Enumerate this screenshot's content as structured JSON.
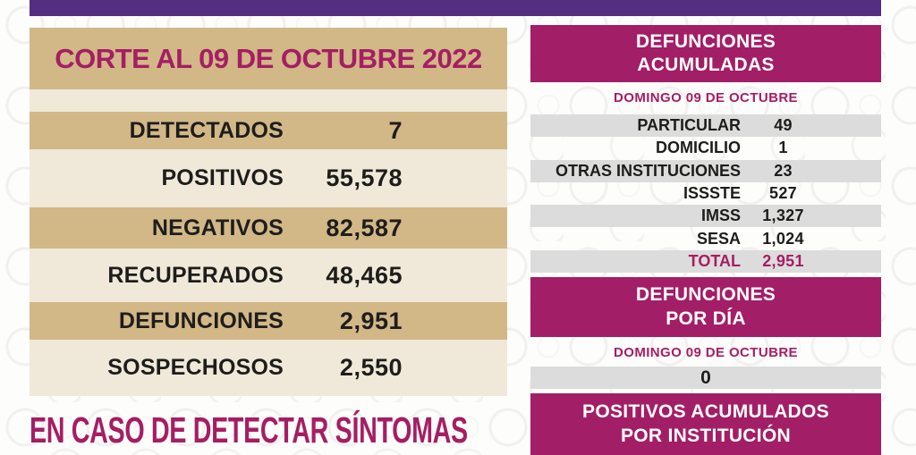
{
  "colors": {
    "purple_bar": "#542e80",
    "magenta": "#a21e66",
    "magenta_text": "#a51e63",
    "tan_band": "#d2b787",
    "cream_bg": "#f0e9d9",
    "gray_row": "#dcdcdc",
    "dark_text": "#1d1d1b"
  },
  "left_panel": {
    "title": "CORTE AL 09 DE OCTUBRE 2022",
    "rows": [
      {
        "label": "DETECTADOS",
        "value": "7"
      },
      {
        "label": "POSITIVOS",
        "value": "55,578"
      },
      {
        "label": "NEGATIVOS",
        "value": "82,587"
      },
      {
        "label": "RECUPERADOS",
        "value": "48,465"
      },
      {
        "label": "DEFUNCIONES",
        "value": "2,951"
      },
      {
        "label": "SOSPECHOSOS",
        "value": "2,550"
      }
    ],
    "footer_note": "EN CASO DE DETECTAR SÍNTOMAS"
  },
  "deaths_accumulated": {
    "title_line1": "DEFUNCIONES",
    "title_line2": "ACUMULADAS",
    "subtitle": "DOMINGO 09 DE OCTUBRE",
    "rows": [
      {
        "label": "PARTICULAR",
        "value": "49"
      },
      {
        "label": "DOMICILIO",
        "value": "1"
      },
      {
        "label": "OTRAS INSTITUCIONES",
        "value": "23"
      },
      {
        "label": "ISSSTE",
        "value": "527"
      },
      {
        "label": "IMSS",
        "value": "1,327"
      },
      {
        "label": "SESA",
        "value": "1,024"
      },
      {
        "label": "TOTAL",
        "value": "2,951"
      }
    ]
  },
  "deaths_per_day": {
    "title_line1": "DEFUNCIONES",
    "title_line2": "POR DÍA",
    "subtitle": "DOMINGO 09 DE OCTUBRE",
    "value": "0"
  },
  "positives_by_institution": {
    "title_line1": "POSITIVOS ACUMULADOS",
    "title_line2": "POR INSTITUCIÓN"
  }
}
